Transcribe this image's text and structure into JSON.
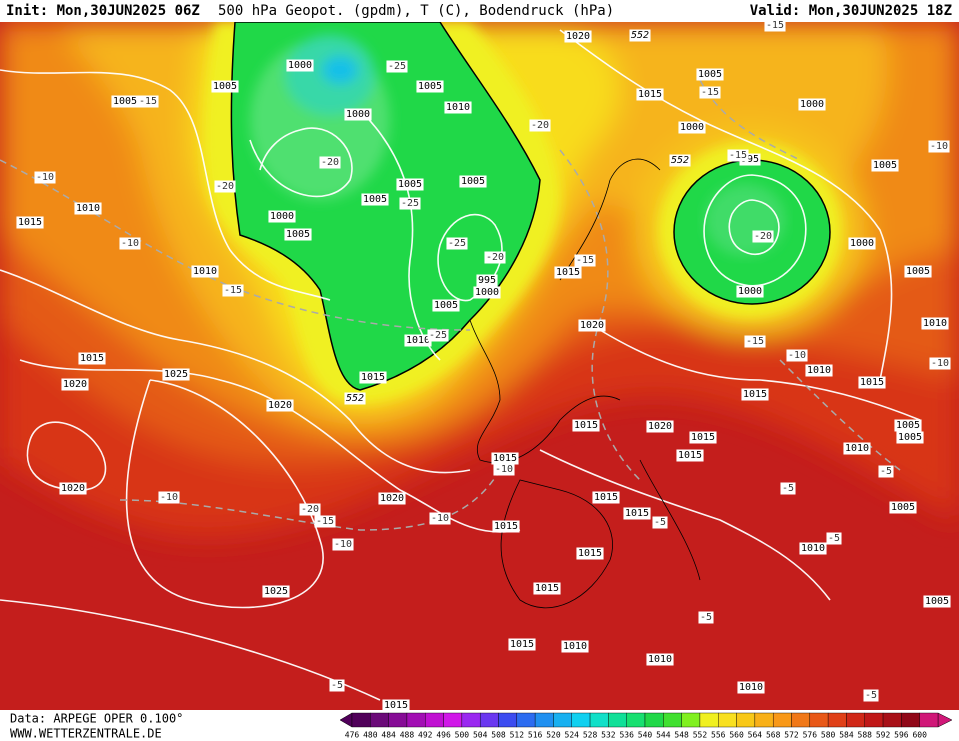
{
  "header": {
    "init": "Init: Mon,30JUN2025 06Z",
    "title": "500 hPa Geopot. (gpdm), T (C), Bodendruck (hPa)",
    "valid": "Valid: Mon,30JUN2025 18Z"
  },
  "footer": {
    "source": "Data: ARPEGE OPER 0.100°",
    "website": "WWW.WETTERZENTRALE.DE"
  },
  "colorbar": {
    "levels": [
      476,
      480,
      484,
      488,
      492,
      496,
      500,
      504,
      508,
      512,
      516,
      520,
      524,
      528,
      532,
      536,
      540,
      544,
      548,
      552,
      556,
      560,
      564,
      568,
      572,
      576,
      580,
      584,
      588,
      592,
      596,
      600
    ],
    "colors": [
      "#50005a",
      "#6a0a78",
      "#860c96",
      "#a20eb4",
      "#c010d2",
      "#d018e8",
      "#9a28f0",
      "#6a38f0",
      "#3c4cf0",
      "#2c6cf0",
      "#2090f0",
      "#18b0f0",
      "#10d0f0",
      "#10e0c8",
      "#10e098",
      "#18e070",
      "#20d848",
      "#40e030",
      "#80f020",
      "#f0f020",
      "#f8e020",
      "#f8c818",
      "#f8b018",
      "#f89818",
      "#f07818",
      "#e85818",
      "#e04018",
      "#d02818",
      "#c01818",
      "#a81018",
      "#900818",
      "#d01878"
    ]
  },
  "map": {
    "pressure_labels": [
      1000,
      1005,
      1005,
      1000,
      1005,
      1010,
      1005,
      1005,
      1005,
      1000,
      1005,
      1010,
      1015,
      1010,
      1000,
      1005,
      1010,
      1015,
      1015,
      1020,
      1025,
      1020,
      1020,
      1020,
      1025,
      1020,
      1015,
      1005,
      1000,
      1000,
      1005,
      995,
      1000,
      1005,
      1000,
      1015,
      1020,
      1010,
      1015,
      1015,
      1015,
      1020,
      1015,
      1015,
      1015,
      1010,
      1005,
      1005,
      1015,
      1015,
      1015,
      1015,
      1015,
      1010,
      1005,
      1005,
      1015,
      1010,
      1010,
      1010,
      1015,
      995,
      1010
    ],
    "temperature_labels": [
      -25,
      -15,
      -20,
      -20,
      -20,
      -25,
      -25,
      -20,
      -20,
      -10,
      -10,
      -15,
      -25,
      -15,
      -15,
      -15,
      -15,
      -10,
      -15,
      -10,
      -10,
      -10,
      -10,
      -20,
      -15,
      -10,
      -10,
      -5,
      -5,
      -5,
      -5,
      -5,
      -5,
      -5
    ],
    "height_labels": [
      552,
      552,
      552
    ]
  }
}
